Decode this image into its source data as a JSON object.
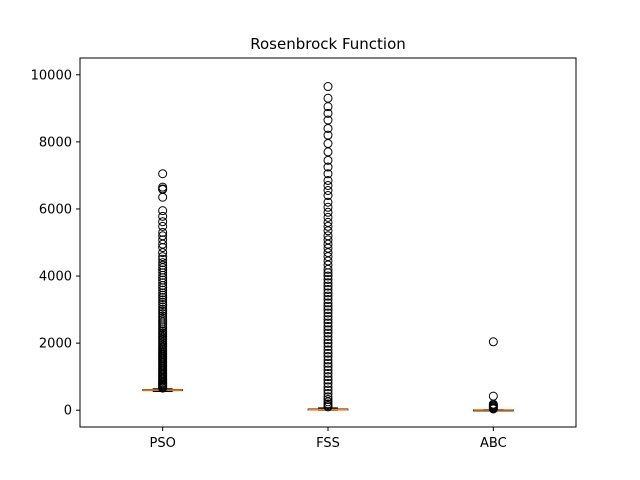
{
  "chart_data": {
    "type": "box",
    "title": "Rosenbrock Function",
    "xlabel": "",
    "ylabel": "",
    "ylim": [
      -500,
      10500
    ],
    "yticks": [
      0,
      2000,
      4000,
      6000,
      8000,
      10000
    ],
    "ytick_labels": [
      "0",
      "2000",
      "4000",
      "6000",
      "8000",
      "10000"
    ],
    "grid": false,
    "colors": {
      "median": "#ff7f0e",
      "box": "#000000",
      "flier": "#000000"
    },
    "categories": [
      "PSO",
      "FSS",
      "ABC"
    ],
    "boxes": [
      {
        "name": "PSO",
        "whisker_low": 560,
        "q1": 590,
        "median": 600,
        "q3": 615,
        "whisker_high": 640,
        "fliers": [
          7050,
          6650,
          6600,
          6580,
          6350,
          5950,
          5780,
          5620,
          5480,
          5300,
          5200,
          5080,
          4950,
          4850,
          4700,
          4580,
          4500,
          4400,
          4320,
          4250,
          4180,
          4100,
          4020,
          3950,
          3880,
          3800,
          3720,
          3650,
          3580,
          3500,
          3430,
          3360,
          3290,
          3220,
          3150,
          3080,
          3010,
          2950,
          2880,
          2810,
          2750,
          2690,
          2630,
          2570,
          2510,
          2460,
          2400,
          2350,
          2300,
          2250,
          2200,
          2150,
          2100,
          2050,
          2000,
          1950,
          1900,
          1860,
          1820,
          1780,
          1740,
          1700,
          1660,
          1620,
          1580,
          1540,
          1500,
          1460,
          1420,
          1380,
          1340,
          1300,
          1260,
          1220,
          1180,
          1140,
          1100,
          1060,
          1020,
          980,
          940,
          900,
          860,
          820,
          790,
          760,
          730,
          700,
          680,
          660
        ]
      },
      {
        "name": "FSS",
        "whisker_low": 0,
        "q1": 5,
        "median": 15,
        "q3": 35,
        "whisker_high": 70,
        "fliers": [
          9650,
          9300,
          9050,
          8850,
          8650,
          8400,
          8200,
          7950,
          7700,
          7450,
          7250,
          7050,
          6850,
          6700,
          6550,
          6400,
          6200,
          6050,
          5900,
          5750,
          5600,
          5480,
          5350,
          5200,
          5080,
          4950,
          4830,
          4700,
          4580,
          4450,
          4330,
          4200,
          4100,
          4000,
          3900,
          3800,
          3700,
          3600,
          3500,
          3400,
          3300,
          3200,
          3100,
          3000,
          2900,
          2800,
          2700,
          2600,
          2500,
          2400,
          2300,
          2200,
          2100,
          2000,
          1900,
          1800,
          1700,
          1600,
          1500,
          1400,
          1300,
          1200,
          1100,
          1000,
          900,
          800,
          700,
          600,
          500,
          400,
          320,
          250,
          190,
          140,
          100
        ]
      },
      {
        "name": "ABC",
        "whisker_low": 0,
        "q1": 2,
        "median": 5,
        "q3": 10,
        "whisker_high": 20,
        "fliers": [
          2040,
          420,
          180,
          150,
          120,
          90,
          60,
          40
        ]
      }
    ]
  }
}
